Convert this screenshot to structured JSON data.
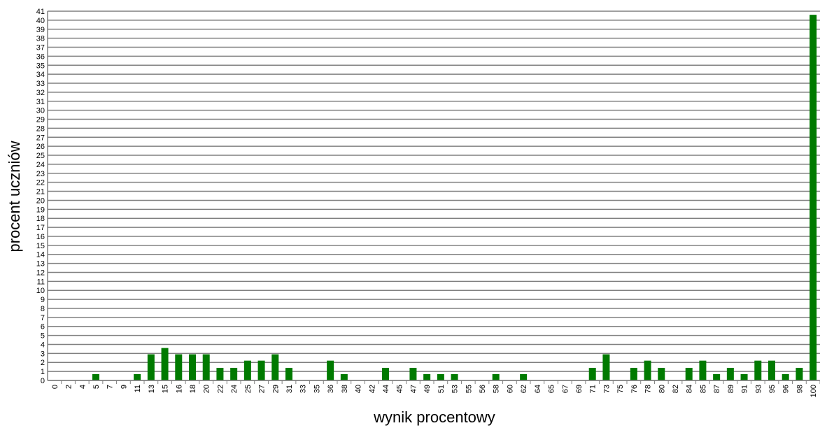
{
  "chart_data": {
    "type": "bar",
    "title": "",
    "xlabel": "wynik procentowy",
    "ylabel": "procent uczniów",
    "ylim": [
      0,
      41
    ],
    "y_ticks": [
      0,
      1,
      2,
      3,
      4,
      5,
      6,
      7,
      8,
      9,
      10,
      11,
      12,
      13,
      14,
      15,
      16,
      17,
      18,
      19,
      20,
      21,
      22,
      23,
      24,
      25,
      26,
      27,
      28,
      29,
      30,
      31,
      32,
      33,
      34,
      35,
      36,
      37,
      38,
      39,
      40,
      41
    ],
    "grid": "horizontal",
    "legend": "none",
    "bar_color": "#007a00",
    "categories": [
      "0",
      "2",
      "4",
      "5",
      "7",
      "9",
      "11",
      "13",
      "15",
      "16",
      "18",
      "20",
      "22",
      "24",
      "25",
      "27",
      "29",
      "31",
      "33",
      "35",
      "36",
      "38",
      "40",
      "42",
      "44",
      "45",
      "47",
      "49",
      "51",
      "53",
      "55",
      "56",
      "58",
      "60",
      "62",
      "64",
      "65",
      "67",
      "69",
      "71",
      "73",
      "75",
      "76",
      "78",
      "80",
      "82",
      "84",
      "85",
      "87",
      "89",
      "91",
      "93",
      "95",
      "96",
      "98",
      "100"
    ],
    "values": [
      0,
      0,
      0,
      0.7,
      0,
      0,
      0.7,
      2.9,
      3.6,
      2.9,
      2.9,
      2.9,
      1.4,
      1.4,
      2.2,
      2.2,
      2.9,
      1.4,
      0,
      0,
      2.2,
      0.7,
      0,
      0,
      1.4,
      0,
      1.4,
      0.7,
      0.7,
      0.7,
      0,
      0,
      0.7,
      0,
      0.7,
      0,
      0,
      0,
      0,
      1.4,
      2.9,
      0,
      1.4,
      2.2,
      1.4,
      0,
      1.4,
      2.2,
      0.7,
      1.4,
      0.7,
      2.2,
      2.2,
      0.7,
      1.4,
      40.6
    ]
  }
}
